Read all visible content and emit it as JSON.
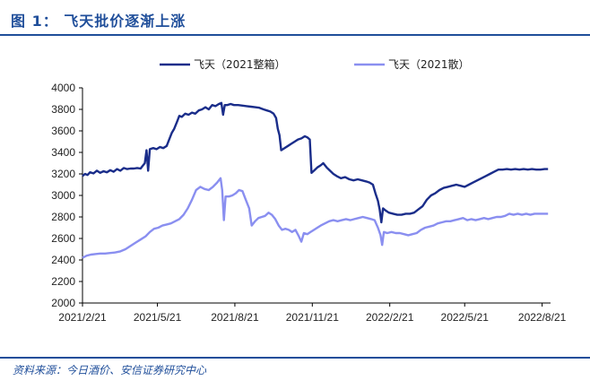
{
  "header": {
    "title": "图 1：  飞天批价逐渐上涨"
  },
  "footer": {
    "source": "资料来源：今日酒价、安信证券研究中心"
  },
  "colors": {
    "accent": "#1f4e9a",
    "series_dark": "#1a2d8a",
    "series_light": "#8a8ff0"
  },
  "chart_data": {
    "type": "line",
    "title": "",
    "xlabel": "",
    "ylabel": "",
    "ylim": [
      2000,
      4000
    ],
    "yticks": [
      2000,
      2200,
      2400,
      2600,
      2800,
      3000,
      3200,
      3400,
      3600,
      3800,
      4000
    ],
    "xlim": [
      "2021-02-21",
      "2022-08-31"
    ],
    "xticks": [
      "2021/2/21",
      "2021/5/21",
      "2021/8/21",
      "2021/11/21",
      "2022/2/21",
      "2022/5/21",
      "2022/8/21"
    ],
    "grid": false,
    "legend": "top-center",
    "series": [
      {
        "name": "飞天（2021整箱）",
        "color": "#1a2d8a",
        "points": [
          [
            "2021-02-21",
            3180
          ],
          [
            "2021-02-24",
            3200
          ],
          [
            "2021-02-27",
            3190
          ],
          [
            "2021-03-02",
            3215
          ],
          [
            "2021-03-06",
            3205
          ],
          [
            "2021-03-10",
            3230
          ],
          [
            "2021-03-14",
            3210
          ],
          [
            "2021-03-18",
            3225
          ],
          [
            "2021-03-22",
            3215
          ],
          [
            "2021-03-26",
            3235
          ],
          [
            "2021-03-30",
            3220
          ],
          [
            "2021-04-03",
            3245
          ],
          [
            "2021-04-07",
            3230
          ],
          [
            "2021-04-11",
            3255
          ],
          [
            "2021-04-15",
            3245
          ],
          [
            "2021-04-19",
            3250
          ],
          [
            "2021-04-23",
            3250
          ],
          [
            "2021-04-27",
            3255
          ],
          [
            "2021-05-01",
            3250
          ],
          [
            "2021-05-04",
            3280
          ],
          [
            "2021-05-06",
            3300
          ],
          [
            "2021-05-08",
            3420
          ],
          [
            "2021-05-10",
            3230
          ],
          [
            "2021-05-12",
            3430
          ],
          [
            "2021-05-16",
            3440
          ],
          [
            "2021-05-20",
            3430
          ],
          [
            "2021-05-24",
            3450
          ],
          [
            "2021-05-28",
            3440
          ],
          [
            "2021-06-01",
            3460
          ],
          [
            "2021-06-04",
            3520
          ],
          [
            "2021-06-07",
            3580
          ],
          [
            "2021-06-10",
            3620
          ],
          [
            "2021-06-13",
            3680
          ],
          [
            "2021-06-16",
            3740
          ],
          [
            "2021-06-19",
            3730
          ],
          [
            "2021-06-23",
            3760
          ],
          [
            "2021-06-27",
            3750
          ],
          [
            "2021-07-01",
            3770
          ],
          [
            "2021-07-05",
            3760
          ],
          [
            "2021-07-09",
            3790
          ],
          [
            "2021-07-13",
            3800
          ],
          [
            "2021-07-17",
            3820
          ],
          [
            "2021-07-21",
            3800
          ],
          [
            "2021-07-25",
            3840
          ],
          [
            "2021-07-29",
            3830
          ],
          [
            "2021-08-02",
            3850
          ],
          [
            "2021-08-05",
            3860
          ],
          [
            "2021-08-07",
            3750
          ],
          [
            "2021-08-09",
            3840
          ],
          [
            "2021-08-12",
            3840
          ],
          [
            "2021-08-16",
            3850
          ],
          [
            "2021-08-20",
            3840
          ],
          [
            "2021-08-25",
            3840
          ],
          [
            "2021-08-30",
            3835
          ],
          [
            "2021-09-04",
            3830
          ],
          [
            "2021-09-09",
            3825
          ],
          [
            "2021-09-14",
            3820
          ],
          [
            "2021-09-19",
            3815
          ],
          [
            "2021-09-24",
            3800
          ],
          [
            "2021-09-28",
            3790
          ],
          [
            "2021-10-02",
            3780
          ],
          [
            "2021-10-06",
            3760
          ],
          [
            "2021-10-09",
            3720
          ],
          [
            "2021-10-11",
            3620
          ],
          [
            "2021-10-13",
            3560
          ],
          [
            "2021-10-15",
            3420
          ],
          [
            "2021-10-19",
            3440
          ],
          [
            "2021-10-23",
            3460
          ],
          [
            "2021-10-27",
            3480
          ],
          [
            "2021-10-31",
            3500
          ],
          [
            "2021-11-04",
            3520
          ],
          [
            "2021-11-08",
            3530
          ],
          [
            "2021-11-12",
            3550
          ],
          [
            "2021-11-15",
            3540
          ],
          [
            "2021-11-18",
            3520
          ],
          [
            "2021-11-20",
            3210
          ],
          [
            "2021-11-23",
            3230
          ],
          [
            "2021-11-27",
            3260
          ],
          [
            "2021-12-01",
            3280
          ],
          [
            "2021-12-04",
            3300
          ],
          [
            "2021-12-08",
            3260
          ],
          [
            "2021-12-12",
            3230
          ],
          [
            "2021-12-16",
            3200
          ],
          [
            "2021-12-20",
            3180
          ],
          [
            "2021-12-25",
            3160
          ],
          [
            "2021-12-30",
            3170
          ],
          [
            "2022-01-04",
            3150
          ],
          [
            "2022-01-09",
            3140
          ],
          [
            "2022-01-14",
            3150
          ],
          [
            "2022-01-19",
            3140
          ],
          [
            "2022-01-24",
            3130
          ],
          [
            "2022-01-28",
            3120
          ],
          [
            "2022-02-01",
            3100
          ],
          [
            "2022-02-04",
            3020
          ],
          [
            "2022-02-07",
            2950
          ],
          [
            "2022-02-09",
            2870
          ],
          [
            "2022-02-11",
            2750
          ],
          [
            "2022-02-13",
            2880
          ],
          [
            "2022-02-16",
            2860
          ],
          [
            "2022-02-20",
            2840
          ],
          [
            "2022-02-25",
            2830
          ],
          [
            "2022-03-02",
            2820
          ],
          [
            "2022-03-07",
            2820
          ],
          [
            "2022-03-12",
            2830
          ],
          [
            "2022-03-17",
            2830
          ],
          [
            "2022-03-22",
            2840
          ],
          [
            "2022-03-27",
            2870
          ],
          [
            "2022-04-01",
            2900
          ],
          [
            "2022-04-06",
            2960
          ],
          [
            "2022-04-11",
            3000
          ],
          [
            "2022-04-16",
            3020
          ],
          [
            "2022-04-21",
            3050
          ],
          [
            "2022-04-26",
            3070
          ],
          [
            "2022-05-01",
            3080
          ],
          [
            "2022-05-06",
            3090
          ],
          [
            "2022-05-11",
            3100
          ],
          [
            "2022-05-16",
            3090
          ],
          [
            "2022-05-21",
            3080
          ],
          [
            "2022-05-26",
            3100
          ],
          [
            "2022-05-31",
            3120
          ],
          [
            "2022-06-05",
            3140
          ],
          [
            "2022-06-10",
            3160
          ],
          [
            "2022-06-15",
            3180
          ],
          [
            "2022-06-20",
            3200
          ],
          [
            "2022-06-25",
            3220
          ],
          [
            "2022-06-30",
            3240
          ],
          [
            "2022-07-05",
            3240
          ],
          [
            "2022-07-10",
            3245
          ],
          [
            "2022-07-15",
            3240
          ],
          [
            "2022-07-20",
            3245
          ],
          [
            "2022-07-25",
            3240
          ],
          [
            "2022-07-30",
            3245
          ],
          [
            "2022-08-04",
            3240
          ],
          [
            "2022-08-09",
            3245
          ],
          [
            "2022-08-14",
            3240
          ],
          [
            "2022-08-19",
            3240
          ],
          [
            "2022-08-24",
            3245
          ],
          [
            "2022-08-28",
            3245
          ]
        ]
      },
      {
        "name": "飞天（2021散）",
        "color": "#8a8ff0",
        "points": [
          [
            "2021-02-21",
            2420
          ],
          [
            "2021-02-26",
            2440
          ],
          [
            "2021-03-03",
            2450
          ],
          [
            "2021-03-08",
            2455
          ],
          [
            "2021-03-14",
            2460
          ],
          [
            "2021-03-20",
            2460
          ],
          [
            "2021-03-26",
            2465
          ],
          [
            "2021-04-01",
            2470
          ],
          [
            "2021-04-07",
            2480
          ],
          [
            "2021-04-13",
            2500
          ],
          [
            "2021-04-19",
            2530
          ],
          [
            "2021-04-25",
            2560
          ],
          [
            "2021-05-01",
            2590
          ],
          [
            "2021-05-07",
            2620
          ],
          [
            "2021-05-12",
            2660
          ],
          [
            "2021-05-17",
            2690
          ],
          [
            "2021-05-22",
            2700
          ],
          [
            "2021-05-27",
            2720
          ],
          [
            "2021-06-01",
            2730
          ],
          [
            "2021-06-06",
            2740
          ],
          [
            "2021-06-11",
            2760
          ],
          [
            "2021-06-16",
            2780
          ],
          [
            "2021-06-21",
            2820
          ],
          [
            "2021-06-26",
            2880
          ],
          [
            "2021-07-01",
            2960
          ],
          [
            "2021-07-06",
            3050
          ],
          [
            "2021-07-11",
            3080
          ],
          [
            "2021-07-16",
            3060
          ],
          [
            "2021-07-21",
            3050
          ],
          [
            "2021-07-26",
            3080
          ],
          [
            "2021-07-31",
            3120
          ],
          [
            "2021-08-04",
            3160
          ],
          [
            "2021-08-06",
            3050
          ],
          [
            "2021-08-08",
            2770
          ],
          [
            "2021-08-10",
            2990
          ],
          [
            "2021-08-14",
            2990
          ],
          [
            "2021-08-18",
            3000
          ],
          [
            "2021-08-22",
            3020
          ],
          [
            "2021-08-26",
            3050
          ],
          [
            "2021-08-30",
            3040
          ],
          [
            "2021-09-03",
            2960
          ],
          [
            "2021-09-07",
            2880
          ],
          [
            "2021-09-10",
            2720
          ],
          [
            "2021-09-14",
            2760
          ],
          [
            "2021-09-18",
            2790
          ],
          [
            "2021-09-22",
            2800
          ],
          [
            "2021-09-26",
            2810
          ],
          [
            "2021-09-30",
            2840
          ],
          [
            "2021-10-04",
            2820
          ],
          [
            "2021-10-08",
            2780
          ],
          [
            "2021-10-12",
            2720
          ],
          [
            "2021-10-16",
            2680
          ],
          [
            "2021-10-20",
            2690
          ],
          [
            "2021-10-24",
            2680
          ],
          [
            "2021-10-28",
            2660
          ],
          [
            "2021-11-01",
            2680
          ],
          [
            "2021-11-05",
            2620
          ],
          [
            "2021-11-08",
            2570
          ],
          [
            "2021-11-11",
            2650
          ],
          [
            "2021-11-15",
            2640
          ],
          [
            "2021-11-19",
            2660
          ],
          [
            "2021-11-23",
            2680
          ],
          [
            "2021-11-27",
            2700
          ],
          [
            "2021-12-01",
            2720
          ],
          [
            "2021-12-06",
            2740
          ],
          [
            "2021-12-11",
            2760
          ],
          [
            "2021-12-16",
            2770
          ],
          [
            "2021-12-21",
            2760
          ],
          [
            "2021-12-26",
            2770
          ],
          [
            "2021-12-31",
            2780
          ],
          [
            "2022-01-05",
            2770
          ],
          [
            "2022-01-10",
            2780
          ],
          [
            "2022-01-15",
            2790
          ],
          [
            "2022-01-20",
            2800
          ],
          [
            "2022-01-25",
            2790
          ],
          [
            "2022-01-30",
            2780
          ],
          [
            "2022-02-03",
            2770
          ],
          [
            "2022-02-07",
            2700
          ],
          [
            "2022-02-10",
            2630
          ],
          [
            "2022-02-12",
            2540
          ],
          [
            "2022-02-14",
            2660
          ],
          [
            "2022-02-18",
            2650
          ],
          [
            "2022-02-23",
            2660
          ],
          [
            "2022-02-28",
            2650
          ],
          [
            "2022-03-05",
            2650
          ],
          [
            "2022-03-10",
            2640
          ],
          [
            "2022-03-15",
            2630
          ],
          [
            "2022-03-20",
            2640
          ],
          [
            "2022-03-25",
            2650
          ],
          [
            "2022-03-30",
            2680
          ],
          [
            "2022-04-04",
            2700
          ],
          [
            "2022-04-09",
            2710
          ],
          [
            "2022-04-14",
            2720
          ],
          [
            "2022-04-19",
            2740
          ],
          [
            "2022-04-24",
            2750
          ],
          [
            "2022-04-29",
            2760
          ],
          [
            "2022-05-04",
            2760
          ],
          [
            "2022-05-09",
            2770
          ],
          [
            "2022-05-14",
            2780
          ],
          [
            "2022-05-19",
            2790
          ],
          [
            "2022-05-24",
            2770
          ],
          [
            "2022-05-29",
            2780
          ],
          [
            "2022-06-03",
            2770
          ],
          [
            "2022-06-08",
            2780
          ],
          [
            "2022-06-13",
            2790
          ],
          [
            "2022-06-18",
            2780
          ],
          [
            "2022-06-23",
            2790
          ],
          [
            "2022-06-28",
            2800
          ],
          [
            "2022-07-03",
            2800
          ],
          [
            "2022-07-08",
            2810
          ],
          [
            "2022-07-13",
            2830
          ],
          [
            "2022-07-18",
            2820
          ],
          [
            "2022-07-23",
            2830
          ],
          [
            "2022-07-28",
            2820
          ],
          [
            "2022-08-02",
            2830
          ],
          [
            "2022-08-07",
            2820
          ],
          [
            "2022-08-12",
            2830
          ],
          [
            "2022-08-17",
            2830
          ],
          [
            "2022-08-22",
            2830
          ],
          [
            "2022-08-28",
            2830
          ]
        ]
      }
    ]
  }
}
